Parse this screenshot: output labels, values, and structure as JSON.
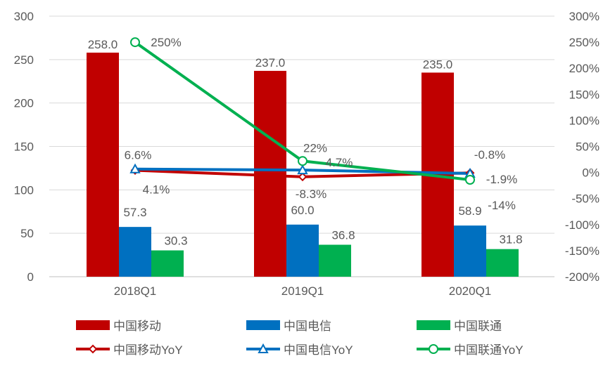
{
  "chart_data": {
    "type": "bar+line",
    "categories": [
      "2018Q1",
      "2019Q1",
      "2020Q1"
    ],
    "ylim": [
      0,
      300
    ],
    "yticks": [
      0,
      50,
      100,
      150,
      200,
      250,
      300
    ],
    "y2lim": [
      -200,
      300
    ],
    "y2ticks": [
      -200,
      -150,
      -100,
      -50,
      0,
      50,
      100,
      150,
      200,
      250,
      300
    ],
    "grid": true,
    "legend_position": "bottom",
    "bar_series": [
      {
        "name": "中国移动",
        "values": [
          258.0,
          237.0,
          235.0
        ],
        "labels": [
          "258.0",
          "237.0",
          "235.0"
        ],
        "color": "#C00000"
      },
      {
        "name": "中国电信",
        "values": [
          57.3,
          60.0,
          58.9
        ],
        "labels": [
          "57.3",
          "60.0",
          "58.9"
        ],
        "color": "#0070C0"
      },
      {
        "name": "中国联通",
        "values": [
          30.3,
          36.8,
          31.8
        ],
        "labels": [
          "30.3",
          "36.8",
          "31.8"
        ],
        "color": "#00B050"
      }
    ],
    "line_series": [
      {
        "name": "中国移动YoY",
        "values": [
          4.1,
          -8.3,
          -0.8
        ],
        "labels": [
          "4.1%",
          "-8.3%",
          "-0.8%"
        ],
        "color": "#C00000",
        "marker": "diamond"
      },
      {
        "name": "中国电信YoY",
        "values": [
          6.6,
          4.7,
          -1.9
        ],
        "labels": [
          "6.6%",
          "4.7%",
          "-1.9%"
        ],
        "color": "#0070C0",
        "marker": "triangle"
      },
      {
        "name": "中国联通YoY",
        "values": [
          250,
          22,
          -14
        ],
        "labels": [
          "250%",
          "22%",
          "-14%"
        ],
        "color": "#00B050",
        "marker": "circle"
      }
    ]
  }
}
